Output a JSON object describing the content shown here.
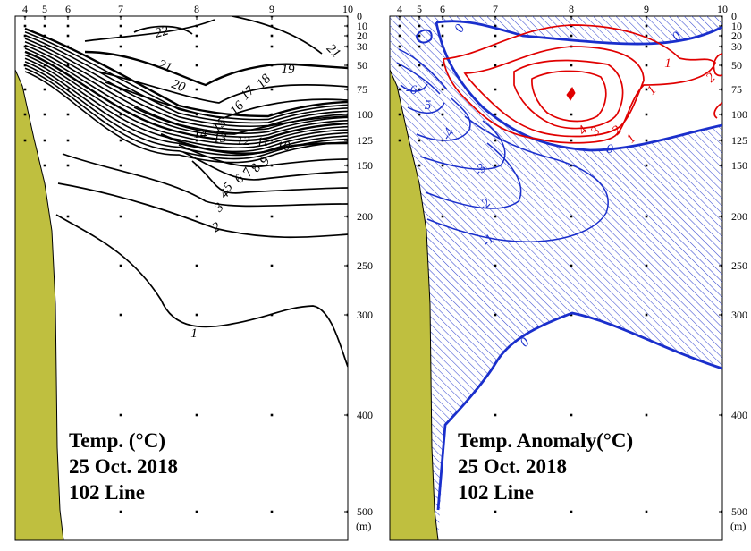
{
  "chart_data": [
    {
      "type": "contour",
      "panel": "left",
      "variable": "Temperature",
      "title": "Temp. (°C)",
      "date": "25 Oct. 2018",
      "line": "102 Line",
      "stations": [
        "4",
        "5",
        "6",
        "7",
        "8",
        "9",
        "10"
      ],
      "depth_ticks": [
        "0",
        "10",
        "20",
        "30",
        "50",
        "75",
        "100",
        "125",
        "150",
        "200",
        "250",
        "300",
        "400",
        "500"
      ],
      "depth_unit": "(m)",
      "depth_range": [
        0,
        520
      ],
      "contour_levels": [
        1,
        2,
        3,
        4,
        5,
        6,
        7,
        8,
        9,
        10,
        11,
        12,
        13,
        14,
        15,
        16,
        17,
        18,
        19,
        20,
        21,
        22
      ],
      "contour_labels": [
        "22",
        "21",
        "21",
        "20",
        "19",
        "18",
        "17",
        "16",
        "15",
        "14",
        "13",
        "12",
        "11",
        "10",
        "9",
        "8",
        "7",
        "6",
        "5",
        "4",
        "3",
        "2",
        "1"
      ],
      "colors": {
        "contour": "#000000",
        "land": "#bfbf3f"
      }
    },
    {
      "type": "contour",
      "panel": "right",
      "variable": "Temperature anomaly",
      "title": "Temp. Anomaly(°C)",
      "date": "25 Oct. 2018",
      "line": "102 Line",
      "stations": [
        "4",
        "5",
        "6",
        "7",
        "8",
        "9",
        "10"
      ],
      "depth_ticks": [
        "0",
        "10",
        "20",
        "30",
        "50",
        "75",
        "100",
        "125",
        "150",
        "200",
        "250",
        "300",
        "400",
        "500"
      ],
      "depth_unit": "(m)",
      "positive_levels": [
        1,
        2,
        3,
        4
      ],
      "negative_levels": [
        -1,
        -2,
        -3,
        -4,
        -5,
        -6
      ],
      "contour_labels": [
        "0",
        "0",
        "0",
        "0",
        "1",
        "1",
        "1",
        "2",
        "2",
        "3",
        "4",
        "-1",
        "-2",
        "-3",
        "-4",
        "-5",
        "-6"
      ],
      "negative_hatched": true,
      "colors": {
        "positive": "#e00000",
        "negative": "#1a2fcc",
        "zero": "#1a2fcc",
        "hatch": "#3a4bd0",
        "land": "#bfbf3f"
      }
    }
  ]
}
